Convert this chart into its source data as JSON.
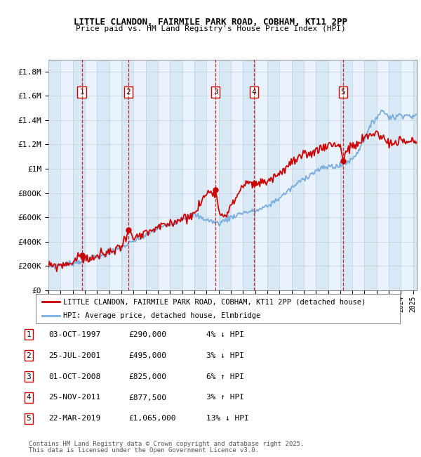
{
  "title_line1": "LITTLE CLANDON, FAIRMILE PARK ROAD, COBHAM, KT11 2PP",
  "title_line2": "Price paid vs. HM Land Registry's House Price Index (HPI)",
  "ylim": [
    0,
    1900000
  ],
  "yticks": [
    0,
    200000,
    400000,
    600000,
    800000,
    1000000,
    1200000,
    1400000,
    1600000,
    1800000
  ],
  "ytick_labels": [
    "£0",
    "£200K",
    "£400K",
    "£600K",
    "£800K",
    "£1M",
    "£1.2M",
    "£1.4M",
    "£1.6M",
    "£1.8M"
  ],
  "x_start_year": 1995,
  "x_end_year": 2025,
  "sale_dates_x": [
    1997.75,
    2001.56,
    2008.75,
    2011.9,
    2019.22
  ],
  "sale_prices_y": [
    290000,
    495000,
    825000,
    877500,
    1065000
  ],
  "sale_labels": [
    "1",
    "2",
    "3",
    "4",
    "5"
  ],
  "sale_info": [
    {
      "num": "1",
      "date": "03-OCT-1997",
      "price": "£290,000",
      "pct": "4%",
      "dir": "↓",
      "vs": "HPI"
    },
    {
      "num": "2",
      "date": "25-JUL-2001",
      "price": "£495,000",
      "pct": "3%",
      "dir": "↓",
      "vs": "HPI"
    },
    {
      "num": "3",
      "date": "01-OCT-2008",
      "price": "£825,000",
      "pct": "6%",
      "dir": "↑",
      "vs": "HPI"
    },
    {
      "num": "4",
      "date": "25-NOV-2011",
      "price": "£877,500",
      "pct": "3%",
      "dir": "↑",
      "vs": "HPI"
    },
    {
      "num": "5",
      "date": "22-MAR-2019",
      "price": "£1,065,000",
      "pct": "13%",
      "dir": "↓",
      "vs": "HPI"
    }
  ],
  "legend_line1": "LITTLE CLANDON, FAIRMILE PARK ROAD, COBHAM, KT11 2PP (detached house)",
  "legend_line2": "HPI: Average price, detached house, Elmbridge",
  "footer_line1": "Contains HM Land Registry data © Crown copyright and database right 2025.",
  "footer_line2": "This data is licensed under the Open Government Licence v3.0.",
  "red_color": "#cc0000",
  "blue_color": "#7aaddb",
  "bg_stripe_color": "#d8e8f5",
  "bg_white_color": "#eaf3fb",
  "grid_color": "#c0cfe0"
}
